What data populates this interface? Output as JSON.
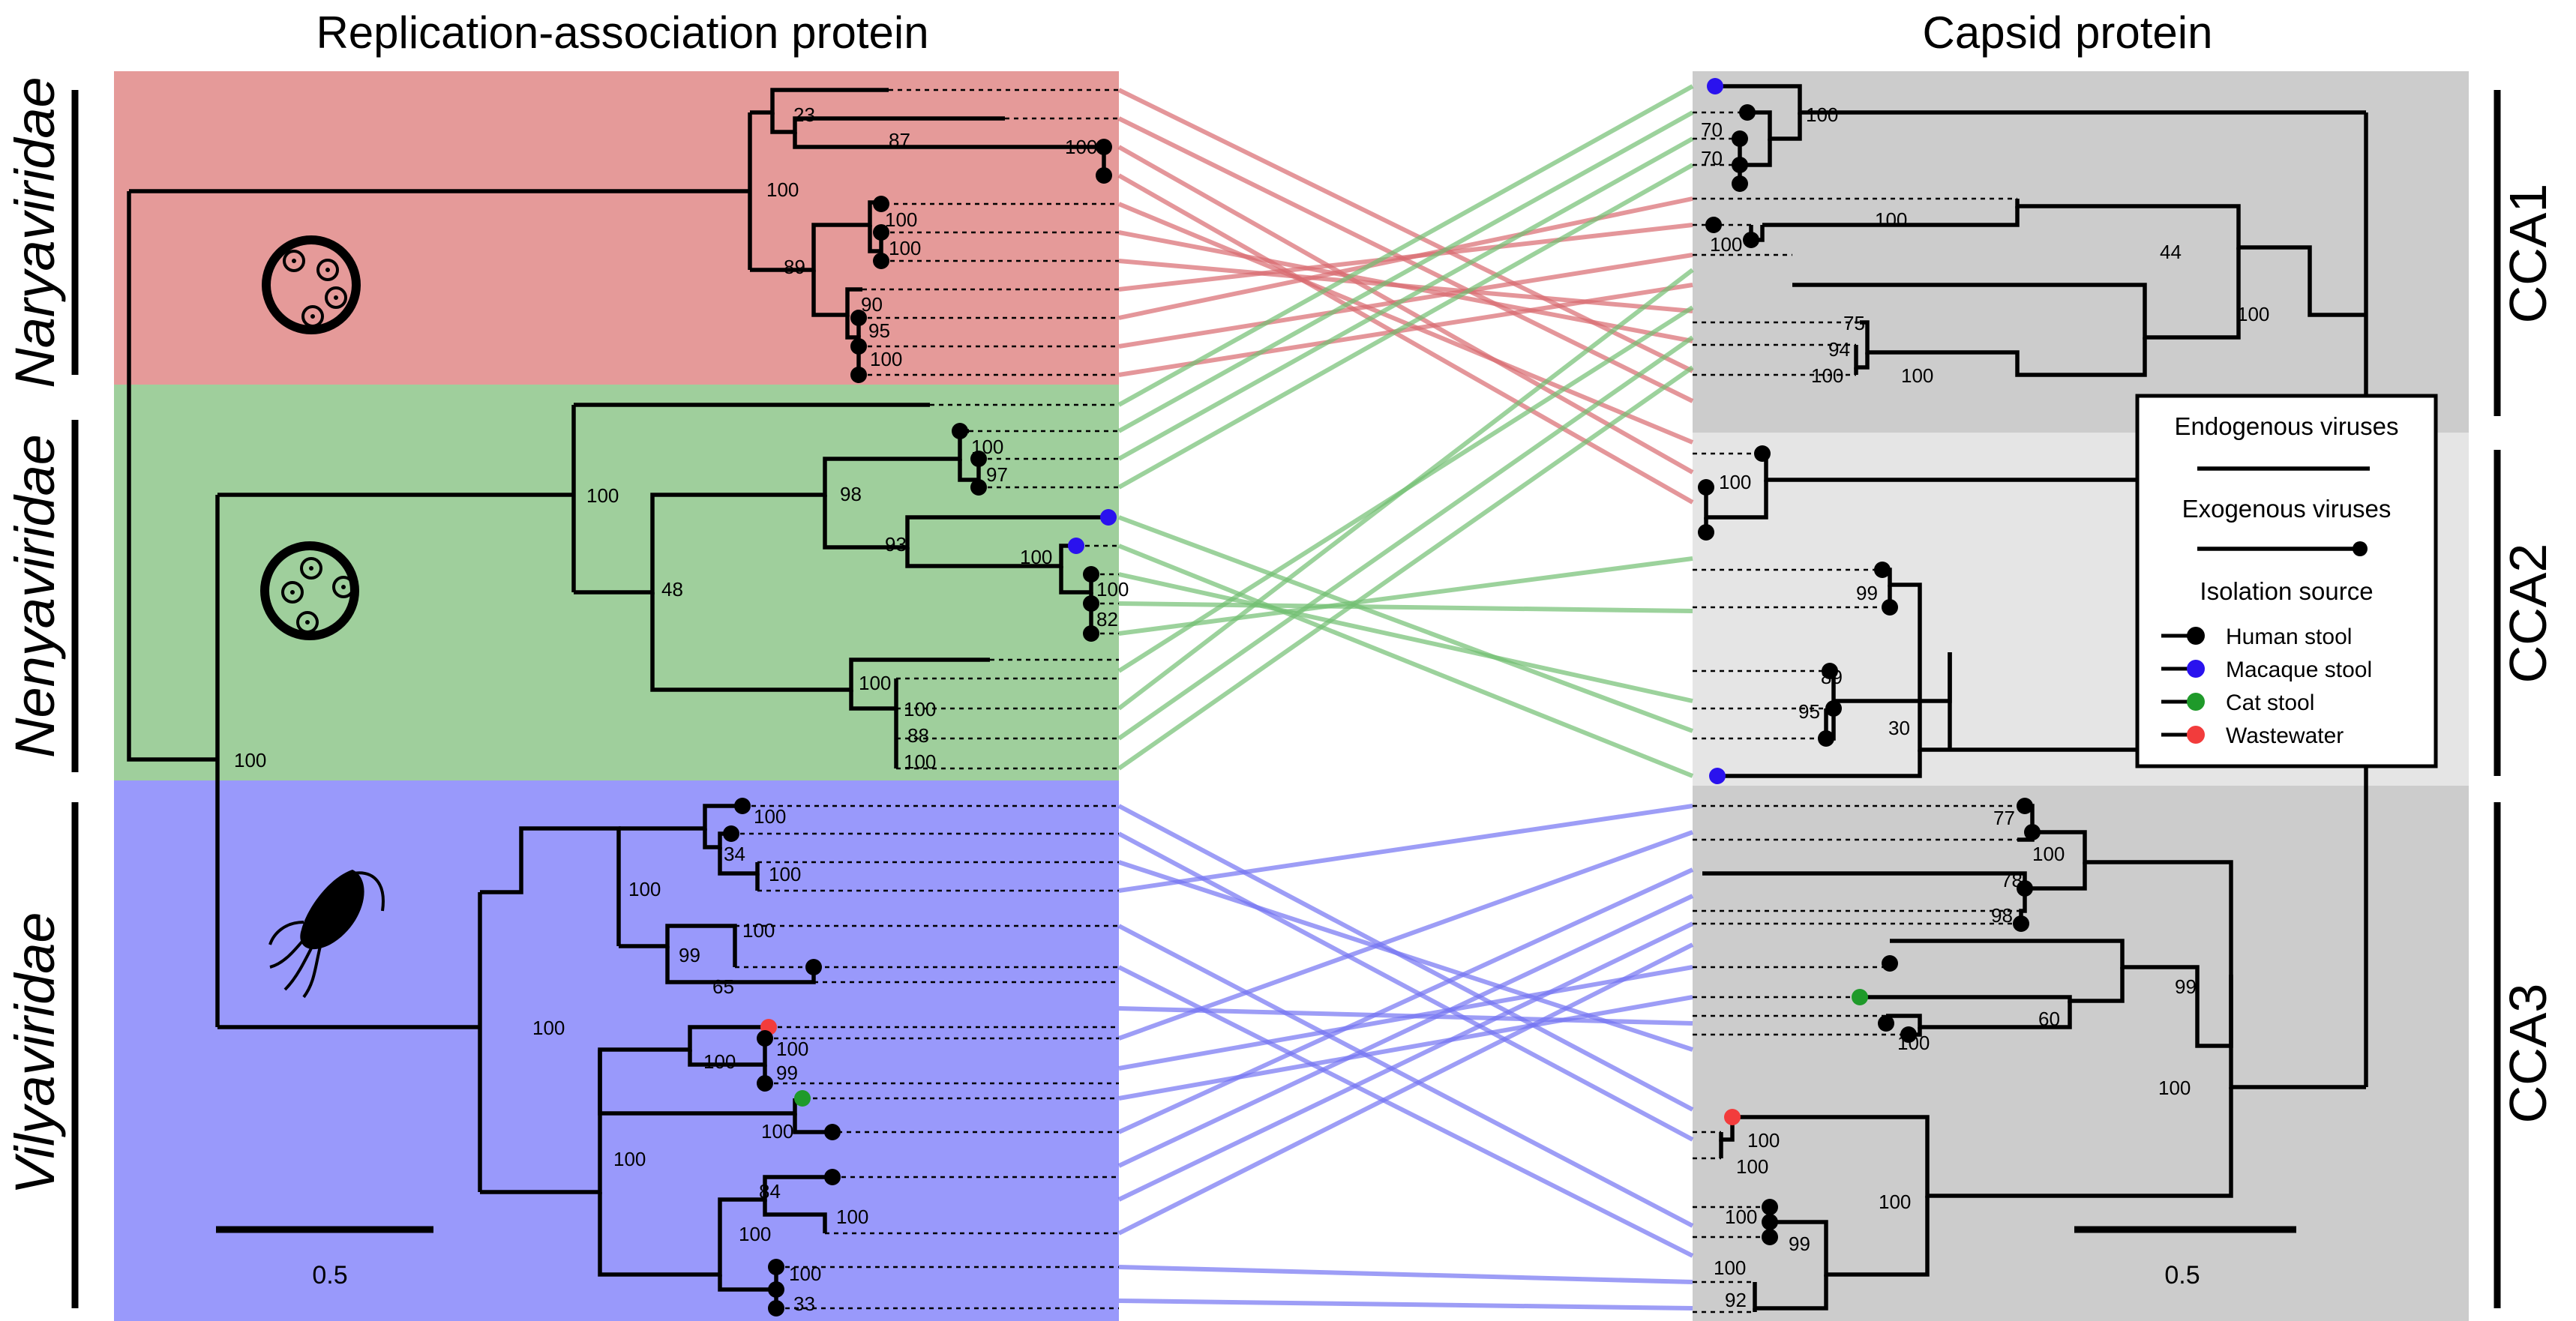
{
  "titles": {
    "left": "Replication-association protein",
    "right": "Capsid protein"
  },
  "families": [
    {
      "name": "Naryaviridae",
      "color": "#e59a99"
    },
    {
      "name": "Nenyaviridae",
      "color": "#9fcf9c"
    },
    {
      "name": "Vilyaviridae",
      "color": "#9999fb"
    }
  ],
  "clusters": [
    {
      "name": "CCA1",
      "color": "#cccccc"
    },
    {
      "name": "CCA2",
      "color": "#e5e5e5"
    },
    {
      "name": "CCA3",
      "color": "#cccccc"
    }
  ],
  "link_colors": {
    "Naryaviridae": "#d96a6f",
    "Nenyaviridae": "#72bf72",
    "Vilyaviridae": "#7474f2"
  },
  "legend": {
    "endogenous": "Endogenous viruses",
    "exogenous": "Exogenous viruses",
    "isolation_title": "Isolation source",
    "sources": [
      {
        "label": "Human stool",
        "color": "#000000"
      },
      {
        "label": "Macaque stool",
        "color": "#2a12ee"
      },
      {
        "label": "Cat stool",
        "color": "#1f9a2a"
      },
      {
        "label": "Wastewater",
        "color": "#f23c3c"
      }
    ]
  },
  "scale_bars": {
    "left": "0.5",
    "right": "0.5"
  },
  "icons": {
    "naryaviridae": "cell-with-nuclei-icon",
    "nenyaviridae": "cell-with-nuclei-icon",
    "vilyaviridae": "protist-flagellate-icon"
  },
  "rep_tree_supports": {
    "naryaviridae": [
      "23",
      "87",
      "100",
      "100",
      "100",
      "100",
      "89",
      "90",
      "95",
      "100"
    ],
    "nenyaviridae": [
      "100",
      "97",
      "98",
      "93",
      "100",
      "100",
      "82",
      "100",
      "48",
      "100",
      "100",
      "88",
      "100"
    ],
    "root": [
      "100"
    ],
    "vilyaviridae": [
      "100",
      "34",
      "100",
      "100",
      "100",
      "99",
      "65",
      "100",
      "100",
      "99",
      "100",
      "100",
      "100",
      "84",
      "100",
      "100",
      "100",
      "33"
    ]
  },
  "capsid_tree_supports": {
    "cca1": [
      "100",
      "70",
      "70",
      "100",
      "100",
      "44",
      "100",
      "75",
      "94",
      "100",
      "100"
    ],
    "cca2": [
      "100",
      "99",
      "100",
      "89",
      "95",
      "30"
    ],
    "cca3": [
      "77",
      "100",
      "78",
      "98",
      "99",
      "60",
      "100",
      "100",
      "100",
      "100",
      "100",
      "100",
      "99",
      "100",
      "92"
    ]
  }
}
